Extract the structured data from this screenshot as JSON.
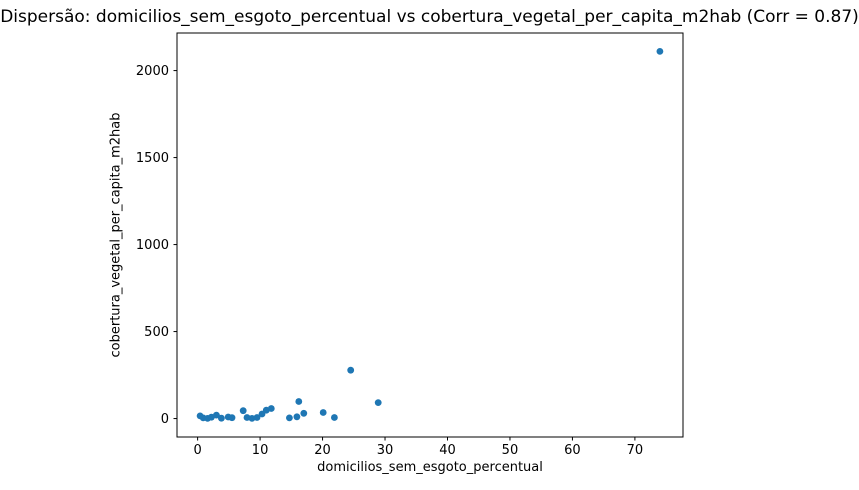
{
  "chart_data": {
    "type": "scatter",
    "title": "Dispersão: domicilios_sem_esgoto_percentual vs cobertura_vegetal_per_capita_m2hab (Corr = 0.87)",
    "xlabel": "domicilios_sem_esgoto_percentual",
    "ylabel": "cobertura_vegetal_per_capita_m2hab",
    "correlation": 0.87,
    "xlim": [
      -3.3,
      77.7
    ],
    "ylim": [
      -106,
      2216
    ],
    "xticks": [
      0,
      10,
      20,
      30,
      40,
      50,
      60,
      70
    ],
    "yticks": [
      0,
      500,
      1000,
      1500,
      2000
    ],
    "grid": false,
    "legend_position": "none",
    "marker_color": "#1f77b4",
    "marker_radius_px": 3.4,
    "axis_color": "#000000",
    "background_color": "#ffffff",
    "points": [
      [
        0.4,
        15
      ],
      [
        0.9,
        4
      ],
      [
        1.6,
        1
      ],
      [
        2.2,
        8
      ],
      [
        3.0,
        20
      ],
      [
        3.8,
        2
      ],
      [
        4.9,
        9
      ],
      [
        5.5,
        5
      ],
      [
        7.3,
        45
      ],
      [
        7.9,
        6
      ],
      [
        8.7,
        1
      ],
      [
        9.5,
        6
      ],
      [
        10.3,
        26
      ],
      [
        11.0,
        48
      ],
      [
        11.8,
        58
      ],
      [
        14.7,
        4
      ],
      [
        15.9,
        10
      ],
      [
        16.2,
        98
      ],
      [
        17.0,
        30
      ],
      [
        20.1,
        35
      ],
      [
        21.9,
        6
      ],
      [
        24.5,
        278
      ],
      [
        28.9,
        92
      ],
      [
        74.0,
        2110
      ]
    ]
  }
}
